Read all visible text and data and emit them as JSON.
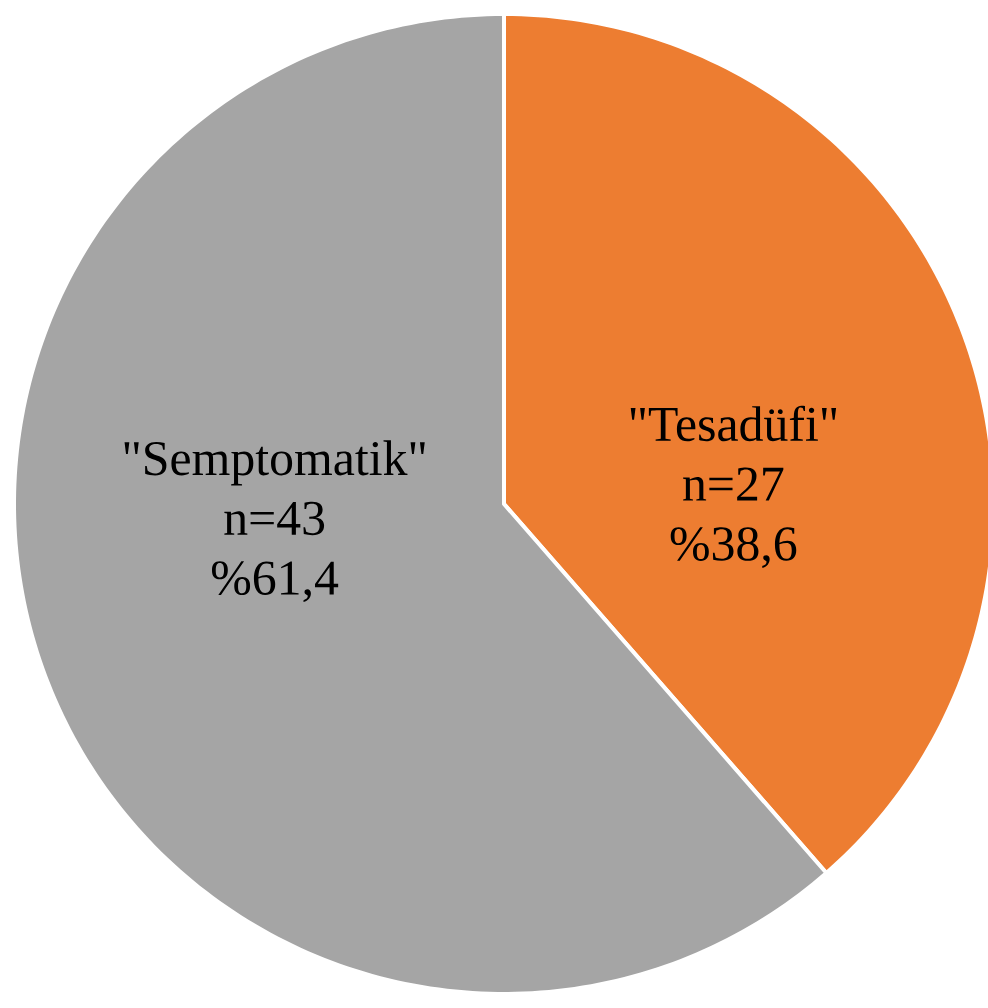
{
  "chart_data": {
    "type": "pie",
    "categories": [
      "\"Tesadüfi\"",
      "\"Semptomatik\""
    ],
    "values": [
      27,
      43
    ],
    "colors": [
      "#ed7d31",
      "#a5a5a5"
    ],
    "value_labels": [
      "n=27",
      "n=43"
    ],
    "annotations": [
      "%38,6",
      "%61,4"
    ]
  }
}
